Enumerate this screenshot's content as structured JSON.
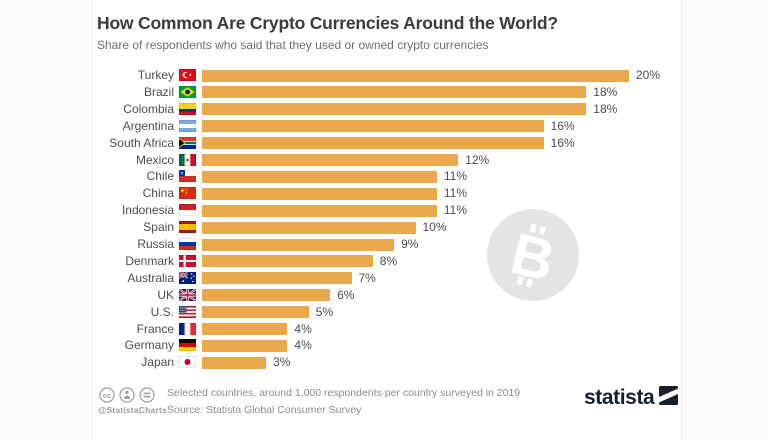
{
  "header": {
    "title": "How Common Are Crypto Currencies Around the World?",
    "subtitle": "Share of respondents who said that they used or owned crypto currencies"
  },
  "chart_data": {
    "type": "bar",
    "orientation": "horizontal",
    "title": "How Common Are Crypto Currencies Around the World?",
    "subtitle": "Share of respondents who said that they used or owned crypto currencies",
    "unit": "%",
    "xlim": [
      0,
      20
    ],
    "grid": false,
    "bar_color": "#E9A84C",
    "categories": [
      "Turkey",
      "Brazil",
      "Colombia",
      "Argentina",
      "South Africa",
      "Mexico",
      "Chile",
      "China",
      "Indonesia",
      "Spain",
      "Russia",
      "Denmark",
      "Australia",
      "UK",
      "U.S.",
      "France",
      "Germany",
      "Japan"
    ],
    "values": [
      20,
      18,
      18,
      16,
      16,
      12,
      11,
      11,
      11,
      10,
      9,
      8,
      7,
      6,
      5,
      4,
      4,
      3
    ],
    "value_labels": [
      "20%",
      "18%",
      "18%",
      "16%",
      "16%",
      "12%",
      "11%",
      "11%",
      "11%",
      "10%",
      "9%",
      "8%",
      "7%",
      "6%",
      "5%",
      "4%",
      "4%",
      "3%"
    ],
    "flag_keys": [
      "turkey",
      "brazil",
      "colombia",
      "argentina",
      "south-africa",
      "mexico",
      "chile",
      "china",
      "indonesia",
      "spain",
      "russia",
      "denmark",
      "australia",
      "uk",
      "us",
      "france",
      "germany",
      "japan"
    ]
  },
  "flags": {
    "turkey": {
      "custom": "turkey"
    },
    "brazil": {
      "custom": "brazil"
    },
    "colombia": {
      "type": "h",
      "colors": [
        "#FCD116",
        "#003893",
        "#CE1126"
      ],
      "weights": [
        2,
        1,
        1
      ]
    },
    "argentina": {
      "type": "h",
      "colors": [
        "#74ACDF",
        "#FFFFFF",
        "#74ACDF"
      ],
      "weights": [
        1,
        1,
        1
      ]
    },
    "south-africa": {
      "custom": "south-africa"
    },
    "mexico": {
      "custom": "mexico"
    },
    "chile": {
      "custom": "chile"
    },
    "china": {
      "custom": "china"
    },
    "indonesia": {
      "type": "h",
      "colors": [
        "#CE2028",
        "#FFFFFF"
      ],
      "weights": [
        1,
        1
      ]
    },
    "spain": {
      "type": "h",
      "colors": [
        "#AA151B",
        "#F1BF00",
        "#AA151B"
      ],
      "weights": [
        1,
        2,
        1
      ]
    },
    "russia": {
      "type": "h",
      "colors": [
        "#FFFFFF",
        "#0039A6",
        "#D52B1E"
      ],
      "weights": [
        1,
        1,
        1
      ]
    },
    "denmark": {
      "custom": "denmark"
    },
    "australia": {
      "custom": "australia"
    },
    "uk": {
      "custom": "uk"
    },
    "us": {
      "custom": "us"
    },
    "france": {
      "type": "v",
      "colors": [
        "#002395",
        "#FFFFFF",
        "#ED2939"
      ]
    },
    "germany": {
      "type": "h",
      "colors": [
        "#000000",
        "#DD0000",
        "#FFCE00"
      ],
      "weights": [
        1,
        1,
        1
      ]
    },
    "japan": {
      "custom": "japan"
    }
  },
  "watermark": {
    "icon": "bitcoin-icon",
    "circle_color": "#E4E4E4",
    "symbol_color": "#FFFFFF"
  },
  "footer": {
    "license_icons": [
      "cc-icon",
      "attribution-icon",
      "equals-icon"
    ],
    "handle": "@StatistaCharts",
    "note_line1": "Selected countries, around 1,000 respondents per country surveyed in 2019",
    "note_line2": "Source: Statista Global Consumer Survey",
    "brand": "statista"
  },
  "colors": {
    "bar": "#E9A84C",
    "title_text": "#3B3B3B",
    "subtitle_text": "#6F6F6F",
    "label_text": "#4D4D4D",
    "footer_text": "#8D8D8D",
    "brand_navy": "#17202B",
    "watermark_gray": "#E4E4E4"
  }
}
